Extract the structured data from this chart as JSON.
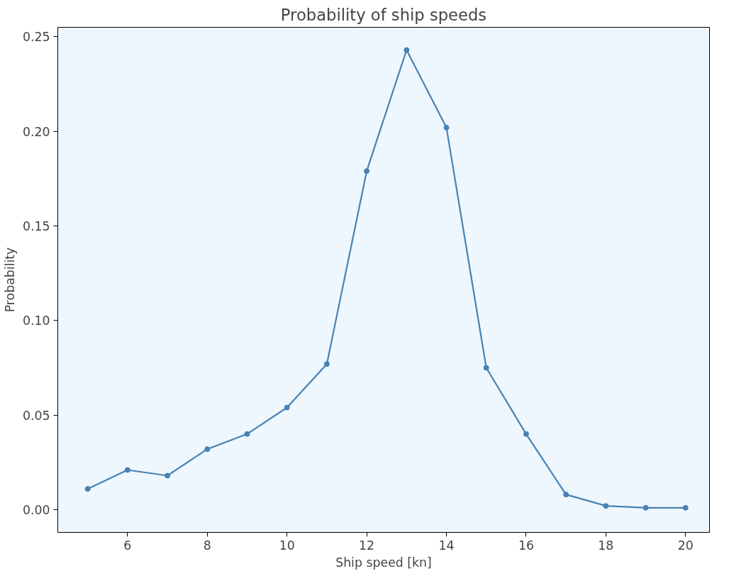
{
  "chart_data": {
    "type": "line",
    "title": "Probability of ship speeds",
    "xlabel": "Ship speed [kn]",
    "ylabel": "Probability",
    "x": [
      5,
      6,
      7,
      8,
      9,
      10,
      11,
      12,
      13,
      14,
      15,
      16,
      17,
      18,
      19,
      20
    ],
    "series": [
      {
        "color": "#4682b4",
        "values": [
          0.011,
          0.021,
          0.018,
          0.032,
          0.04,
          0.054,
          0.077,
          0.179,
          0.243,
          0.202,
          0.075,
          0.04,
          0.008,
          0.002,
          0.001,
          0.001
        ]
      }
    ],
    "xlim": [
      4.25,
      20.6
    ],
    "ylim": [
      -0.012,
      0.255
    ],
    "xticks": [
      6,
      8,
      10,
      12,
      14,
      16,
      18,
      20
    ],
    "yticks": [
      {
        "value": 0,
        "label": "0.00"
      },
      {
        "value": 0.05,
        "label": "0.05"
      },
      {
        "value": 0.1,
        "label": "0.10"
      },
      {
        "value": 0.15,
        "label": "0.15"
      },
      {
        "value": 0.2,
        "label": "0.20"
      },
      {
        "value": 0.25,
        "label": "0.25"
      }
    ],
    "grid": false,
    "marker": "circle",
    "line_style": "solid"
  }
}
